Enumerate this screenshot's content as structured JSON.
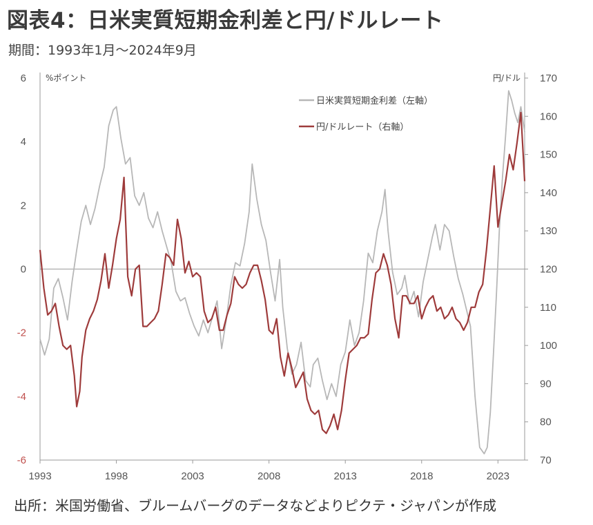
{
  "header": {
    "title": "図表4：日米実質短期金利差と円/ドルレート",
    "period": "期間：1993年1月～2024年9月"
  },
  "footer": {
    "source": "出所：米国労働省、ブルームバーグのデータなどよりピクテ・ジャパンが作成"
  },
  "chart_data": {
    "type": "line",
    "left_axis": {
      "unit_label": "%ポイント",
      "range": [
        -6,
        6
      ],
      "ticks": [
        "-6",
        "-4",
        "-2",
        "0",
        "2",
        "4",
        "6"
      ]
    },
    "right_axis": {
      "unit_label": "円/ドル",
      "range": [
        70,
        170
      ],
      "ticks": [
        "70",
        "80",
        "90",
        "100",
        "110",
        "120",
        "130",
        "140",
        "150",
        "160",
        "170"
      ]
    },
    "x_axis": {
      "range": [
        1993.0,
        2024.75
      ],
      "ticks": [
        "1993",
        "1998",
        "2003",
        "2008",
        "2013",
        "2018",
        "2023"
      ]
    },
    "legend_position": "top-right",
    "grid": false,
    "series": [
      {
        "name": "日米実質短期金利差（左軸）",
        "axis": "left",
        "color": "#b7b7b7",
        "points": [
          [
            1993.0,
            -2.2
          ],
          [
            1993.3,
            -2.7
          ],
          [
            1993.6,
            -2.2
          ],
          [
            1993.9,
            -0.6
          ],
          [
            1994.2,
            -0.3
          ],
          [
            1994.5,
            -0.9
          ],
          [
            1994.8,
            -1.6
          ],
          [
            1995.1,
            -0.4
          ],
          [
            1995.4,
            0.6
          ],
          [
            1995.7,
            1.5
          ],
          [
            1996.0,
            2.0
          ],
          [
            1996.3,
            1.4
          ],
          [
            1996.6,
            1.9
          ],
          [
            1996.9,
            2.6
          ],
          [
            1997.2,
            3.2
          ],
          [
            1997.5,
            4.5
          ],
          [
            1997.8,
            5.0
          ],
          [
            1998.0,
            5.1
          ],
          [
            1998.3,
            4.1
          ],
          [
            1998.6,
            3.3
          ],
          [
            1998.9,
            3.5
          ],
          [
            1999.2,
            2.3
          ],
          [
            1999.5,
            2.0
          ],
          [
            1999.8,
            2.4
          ],
          [
            2000.1,
            1.6
          ],
          [
            2000.4,
            1.3
          ],
          [
            2000.7,
            1.8
          ],
          [
            2001.0,
            1.2
          ],
          [
            2001.3,
            0.7
          ],
          [
            2001.6,
            0.2
          ],
          [
            2001.9,
            -0.7
          ],
          [
            2002.2,
            -1.0
          ],
          [
            2002.5,
            -0.9
          ],
          [
            2002.8,
            -1.4
          ],
          [
            2003.1,
            -1.8
          ],
          [
            2003.4,
            -2.1
          ],
          [
            2003.7,
            -1.6
          ],
          [
            2004.0,
            -2.0
          ],
          [
            2004.3,
            -1.5
          ],
          [
            2004.6,
            -1.0
          ],
          [
            2004.9,
            -2.5
          ],
          [
            2005.2,
            -1.6
          ],
          [
            2005.5,
            -0.5
          ],
          [
            2005.8,
            0.2
          ],
          [
            2006.1,
            0.1
          ],
          [
            2006.4,
            0.8
          ],
          [
            2006.7,
            1.8
          ],
          [
            2006.9,
            3.3
          ],
          [
            2007.2,
            2.2
          ],
          [
            2007.5,
            1.4
          ],
          [
            2007.8,
            0.9
          ],
          [
            2008.1,
            -0.1
          ],
          [
            2008.4,
            -1.0
          ],
          [
            2008.7,
            0.3
          ],
          [
            2008.9,
            -1.2
          ],
          [
            2009.2,
            -2.5
          ],
          [
            2009.5,
            -3.3
          ],
          [
            2009.8,
            -3.0
          ],
          [
            2010.1,
            -2.3
          ],
          [
            2010.4,
            -3.5
          ],
          [
            2010.7,
            -3.7
          ],
          [
            2010.9,
            -3.0
          ],
          [
            2011.2,
            -2.8
          ],
          [
            2011.5,
            -3.5
          ],
          [
            2011.8,
            -4.1
          ],
          [
            2012.1,
            -3.6
          ],
          [
            2012.4,
            -4.0
          ],
          [
            2012.7,
            -3.0
          ],
          [
            2013.0,
            -2.6
          ],
          [
            2013.3,
            -1.6
          ],
          [
            2013.6,
            -2.4
          ],
          [
            2013.9,
            -2.0
          ],
          [
            2014.2,
            -1.0
          ],
          [
            2014.5,
            0.5
          ],
          [
            2014.8,
            0.2
          ],
          [
            2015.1,
            1.2
          ],
          [
            2015.4,
            1.8
          ],
          [
            2015.6,
            2.5
          ],
          [
            2015.8,
            1.2
          ],
          [
            2016.1,
            -0.1
          ],
          [
            2016.4,
            -0.8
          ],
          [
            2016.7,
            -0.6
          ],
          [
            2016.9,
            -0.2
          ],
          [
            2017.2,
            -1.1
          ],
          [
            2017.5,
            -0.7
          ],
          [
            2017.8,
            -1.5
          ],
          [
            2018.1,
            -0.4
          ],
          [
            2018.4,
            0.3
          ],
          [
            2018.7,
            1.0
          ],
          [
            2018.9,
            1.4
          ],
          [
            2019.2,
            0.6
          ],
          [
            2019.5,
            1.4
          ],
          [
            2019.8,
            1.2
          ],
          [
            2020.1,
            0.4
          ],
          [
            2020.4,
            -0.3
          ],
          [
            2020.7,
            -0.8
          ],
          [
            2020.9,
            -1.2
          ],
          [
            2021.2,
            -1.8
          ],
          [
            2021.5,
            -4.0
          ],
          [
            2021.8,
            -5.6
          ],
          [
            2022.1,
            -5.8
          ],
          [
            2022.3,
            -5.6
          ],
          [
            2022.5,
            -4.5
          ],
          [
            2022.7,
            -2.7
          ],
          [
            2022.9,
            -0.8
          ],
          [
            2023.1,
            1.3
          ],
          [
            2023.3,
            2.9
          ],
          [
            2023.5,
            4.2
          ],
          [
            2023.7,
            5.6
          ],
          [
            2023.9,
            5.3
          ],
          [
            2024.1,
            4.9
          ],
          [
            2024.3,
            4.6
          ],
          [
            2024.5,
            5.1
          ],
          [
            2024.75,
            4.3
          ]
        ]
      },
      {
        "name": "円/ドルレート（右軸）",
        "axis": "right",
        "color": "#9e3b3b",
        "points": [
          [
            1993.0,
            125
          ],
          [
            1993.25,
            115
          ],
          [
            1993.5,
            108
          ],
          [
            1993.75,
            109
          ],
          [
            1994.0,
            111
          ],
          [
            1994.25,
            105
          ],
          [
            1994.5,
            100
          ],
          [
            1994.75,
            99
          ],
          [
            1995.0,
            100
          ],
          [
            1995.25,
            92
          ],
          [
            1995.4,
            84
          ],
          [
            1995.6,
            88
          ],
          [
            1995.75,
            97
          ],
          [
            1996.0,
            104
          ],
          [
            1996.25,
            107
          ],
          [
            1996.5,
            109
          ],
          [
            1996.75,
            112
          ],
          [
            1997.0,
            117
          ],
          [
            1997.25,
            124
          ],
          [
            1997.5,
            115
          ],
          [
            1997.75,
            121
          ],
          [
            1998.0,
            128
          ],
          [
            1998.25,
            133
          ],
          [
            1998.5,
            144
          ],
          [
            1998.75,
            118
          ],
          [
            1999.0,
            113
          ],
          [
            1999.25,
            120
          ],
          [
            1999.5,
            121
          ],
          [
            1999.75,
            105
          ],
          [
            2000.0,
            105
          ],
          [
            2000.25,
            106
          ],
          [
            2000.5,
            107
          ],
          [
            2000.75,
            109
          ],
          [
            2001.0,
            116
          ],
          [
            2001.25,
            124
          ],
          [
            2001.5,
            123
          ],
          [
            2001.75,
            121
          ],
          [
            2002.0,
            133
          ],
          [
            2002.25,
            128
          ],
          [
            2002.5,
            119
          ],
          [
            2002.75,
            122
          ],
          [
            2003.0,
            118
          ],
          [
            2003.25,
            119
          ],
          [
            2003.5,
            118
          ],
          [
            2003.75,
            109
          ],
          [
            2004.0,
            106
          ],
          [
            2004.25,
            107
          ],
          [
            2004.5,
            110
          ],
          [
            2004.75,
            104
          ],
          [
            2005.0,
            104
          ],
          [
            2005.25,
            108
          ],
          [
            2005.5,
            111
          ],
          [
            2005.75,
            118
          ],
          [
            2006.0,
            116
          ],
          [
            2006.25,
            115
          ],
          [
            2006.5,
            116
          ],
          [
            2006.75,
            119
          ],
          [
            2007.0,
            121
          ],
          [
            2007.25,
            121
          ],
          [
            2007.5,
            117
          ],
          [
            2007.75,
            112
          ],
          [
            2008.0,
            104
          ],
          [
            2008.25,
            103
          ],
          [
            2008.5,
            107
          ],
          [
            2008.75,
            97
          ],
          [
            2009.0,
            92
          ],
          [
            2009.25,
            98
          ],
          [
            2009.5,
            94
          ],
          [
            2009.75,
            89
          ],
          [
            2010.0,
            91
          ],
          [
            2010.25,
            93
          ],
          [
            2010.5,
            86
          ],
          [
            2010.75,
            83
          ],
          [
            2011.0,
            82
          ],
          [
            2011.25,
            83
          ],
          [
            2011.5,
            78
          ],
          [
            2011.75,
            77
          ],
          [
            2012.0,
            79
          ],
          [
            2012.25,
            82
          ],
          [
            2012.5,
            78
          ],
          [
            2012.75,
            83
          ],
          [
            2013.0,
            91
          ],
          [
            2013.25,
            98
          ],
          [
            2013.5,
            99
          ],
          [
            2013.75,
            100
          ],
          [
            2014.0,
            102
          ],
          [
            2014.25,
            102
          ],
          [
            2014.5,
            103
          ],
          [
            2014.75,
            112
          ],
          [
            2015.0,
            119
          ],
          [
            2015.25,
            120
          ],
          [
            2015.5,
            124
          ],
          [
            2015.75,
            121
          ],
          [
            2016.0,
            116
          ],
          [
            2016.25,
            107
          ],
          [
            2016.5,
            102
          ],
          [
            2016.75,
            113
          ],
          [
            2017.0,
            113
          ],
          [
            2017.25,
            111
          ],
          [
            2017.5,
            111
          ],
          [
            2017.75,
            113
          ],
          [
            2018.0,
            107
          ],
          [
            2018.25,
            110
          ],
          [
            2018.5,
            112
          ],
          [
            2018.75,
            113
          ],
          [
            2019.0,
            109
          ],
          [
            2019.25,
            110
          ],
          [
            2019.5,
            107
          ],
          [
            2019.75,
            108
          ],
          [
            2020.0,
            110
          ],
          [
            2020.25,
            107
          ],
          [
            2020.5,
            106
          ],
          [
            2020.75,
            104
          ],
          [
            2021.0,
            106
          ],
          [
            2021.25,
            110
          ],
          [
            2021.5,
            110
          ],
          [
            2021.75,
            114
          ],
          [
            2022.0,
            116
          ],
          [
            2022.25,
            125
          ],
          [
            2022.5,
            136
          ],
          [
            2022.75,
            147
          ],
          [
            2023.0,
            131
          ],
          [
            2023.25,
            137
          ],
          [
            2023.5,
            143
          ],
          [
            2023.75,
            150
          ],
          [
            2024.0,
            146
          ],
          [
            2024.25,
            153
          ],
          [
            2024.5,
            161
          ],
          [
            2024.75,
            143
          ]
        ]
      }
    ]
  }
}
